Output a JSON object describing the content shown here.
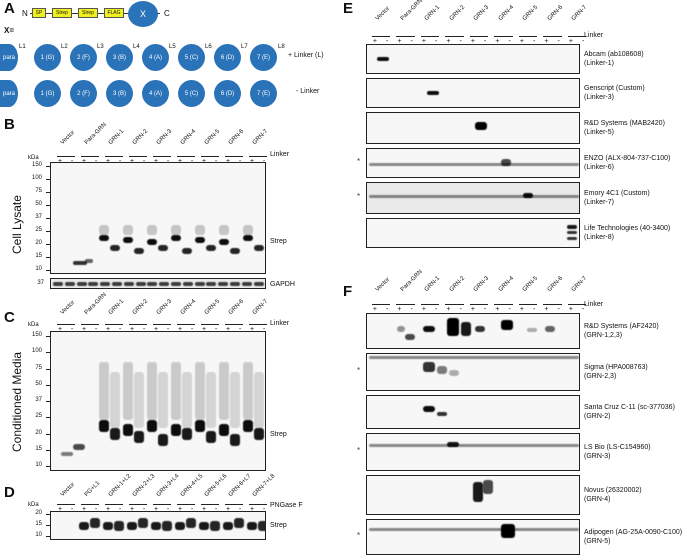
{
  "panels": {
    "a": "A",
    "b": "B",
    "c": "C",
    "d": "D",
    "e": "E",
    "f": "F"
  },
  "schematic": {
    "n_label": "N",
    "c_label": "C",
    "boxes": [
      "SP",
      "Strep",
      "Strep",
      "FLAG"
    ],
    "x_circle": "X",
    "x_eq": "X=",
    "para": "para",
    "row1": [
      "1 (G)",
      "2 (F)",
      "3 (B)",
      "4 (A)",
      "5 (C)",
      "6 (D)",
      "7 (E)"
    ],
    "linkers": [
      "L1",
      "L2",
      "L3",
      "L4",
      "L5",
      "L6",
      "L7",
      "L8"
    ],
    "plus_linker": "+ Linker (L)",
    "minus_linker": "- Linker"
  },
  "lanes_grn": [
    "Vector",
    "Para-GRN",
    "GRN-1",
    "GRN-2",
    "GRN-3",
    "GRN-4",
    "GRN-5",
    "GRN-6",
    "GRN-7"
  ],
  "lanes_d": [
    "Vector",
    "PG+L1",
    "GRN-1+L2",
    "GRN-2+L3",
    "GRN-3+L4",
    "GRN-4+L5",
    "GRN-5+L6",
    "GRN-6+L7",
    "GRN-7+L8"
  ],
  "pm": {
    "plus": "+",
    "minus": "-"
  },
  "kda": "kDa",
  "linker": "Linker",
  "pngase": "PNGase F",
  "b": {
    "title": "Cell Lysate",
    "ladder": [
      "150",
      "100",
      "75",
      "50",
      "37",
      "25",
      "20",
      "15",
      "10"
    ],
    "strep": "Strep",
    "gapdh": "GAPDH",
    "gapdh_ladder": "37"
  },
  "c": {
    "title": "Conditioned Media",
    "ladder": [
      "150",
      "100",
      "75",
      "50",
      "37",
      "25",
      "20",
      "15",
      "10"
    ],
    "strep": "Strep"
  },
  "d": {
    "ladder": [
      "20",
      "15",
      "10"
    ],
    "strep": "Strep"
  },
  "e": {
    "blots": [
      {
        "line1": "Abcam (ab108608)",
        "line2": "(Linker-1)"
      },
      {
        "line1": "Genscript (Custom)",
        "line2": "(Linker-3)"
      },
      {
        "line1": "R&D Systems (MAB2420)",
        "line2": "(Linker-5)"
      },
      {
        "line1": "ENZO (ALX-804-737-C100)",
        "line2": "(Linker-6)"
      },
      {
        "line1": "Emory 4C1 (Custom)",
        "line2": "(Linker-7)"
      },
      {
        "line1": "Life Technologies (40-3400)",
        "line2": "(Linker-8)"
      }
    ]
  },
  "f": {
    "blots": [
      {
        "line1": "R&D Systems (AF2420)",
        "line2": "(GRN-1,2,3)"
      },
      {
        "line1": "Sigma (HPA008763)",
        "line2": "(GRN-2,3)"
      },
      {
        "line1": "Santa Cruz C-11 (sc-377036)",
        "line2": "(GRN-2)"
      },
      {
        "line1": "LS Bio (LS-C154960)",
        "line2": "(GRN-3)"
      },
      {
        "line1": "Novus (26320002)",
        "line2": "(GRN-4)"
      },
      {
        "line1": "Adipogen (AG-25A-0090-C100)",
        "line2": "(GRN-5)"
      }
    ]
  },
  "star": "*"
}
